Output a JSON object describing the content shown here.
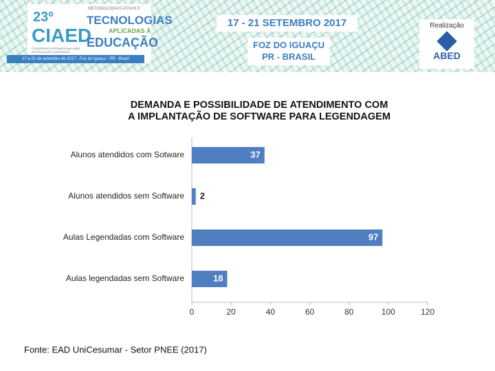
{
  "header": {
    "edition": "23º",
    "event": "CIAED",
    "event_subtitle": "CONGRESSO INTERNACIONAL ABED DE EDUCAÇÃO A DISTÂNCIA",
    "event_dates": "17 a 21 de setembro de 2017 - Foz do Iguaçu - PR - Brasil",
    "theme_line1": "METODOLOGIAS ATIVAS E",
    "theme_line2": "TECNOLOGIAS",
    "theme_line3": "APLICADAS À",
    "theme_line4": "EDUCAÇÃO",
    "dates": "17 - 21 SETEMBRO 2017",
    "city": "FOZ DO IGUAÇU",
    "state": "PR - BRASIL",
    "organizer_label": "Realização",
    "organizer": "ABED"
  },
  "chart_data": {
    "type": "bar",
    "orientation": "horizontal",
    "title": [
      "DEMANDA E POSSIBILIDADE DE ATENDIMENTO COM",
      "A IMPLANTAÇÃO DE SOFTWARE PARA LEGENDAGEM"
    ],
    "categories": [
      "Alunos atendidos com Sotware",
      "Alunos atendidos sem Software",
      "Aulas Legendadas com Software",
      "Aulas legendadas sem Software"
    ],
    "values": [
      37,
      2,
      97,
      18
    ],
    "color": "#4f7ec1",
    "xlim": [
      0,
      120
    ],
    "xticks": [
      0,
      20,
      40,
      60,
      80,
      100,
      120
    ],
    "grid": false
  },
  "source": "Fonte: EAD UniCesumar - Setor PNEE (2017)"
}
